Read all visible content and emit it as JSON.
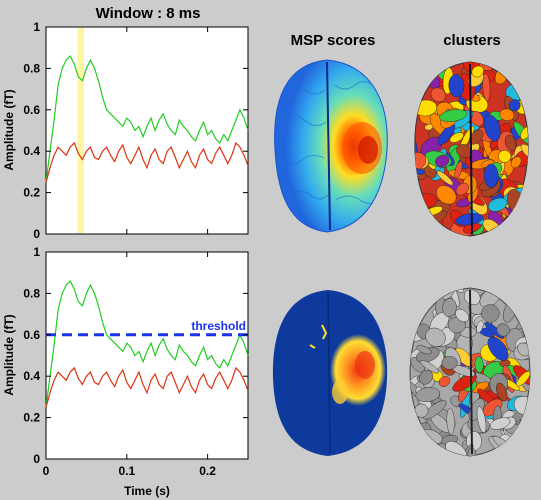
{
  "titles": {
    "top": "Window : 8 ms",
    "msp": "MSP scores",
    "clusters": "clusters"
  },
  "colors": {
    "background": "#cccccc",
    "green_series": "#22cc22",
    "red_series": "#dd3311",
    "window_highlight": "#fff7a0",
    "threshold_line": "#1a33ee"
  },
  "chart_data": [
    {
      "type": "line",
      "title": "Window : 8 ms",
      "xlabel": "",
      "ylabel": "Amplitude (fT)",
      "xlim": [
        0,
        0.25
      ],
      "ylim": [
        0,
        1
      ],
      "x_ticks": [],
      "y_ticks": [
        "0",
        "0.2",
        "0.4",
        "0.6",
        "0.8",
        "1"
      ],
      "highlight_window": [
        0.039,
        0.047
      ],
      "series": [
        {
          "color": "#22cc22",
          "x": [
            0,
            0.005,
            0.01,
            0.015,
            0.02,
            0.025,
            0.03,
            0.035,
            0.04,
            0.045,
            0.05,
            0.055,
            0.06,
            0.065,
            0.07,
            0.075,
            0.08,
            0.085,
            0.09,
            0.095,
            0.1,
            0.105,
            0.11,
            0.115,
            0.12,
            0.125,
            0.13,
            0.135,
            0.14,
            0.145,
            0.15,
            0.155,
            0.16,
            0.165,
            0.17,
            0.175,
            0.18,
            0.185,
            0.19,
            0.195,
            0.2,
            0.205,
            0.21,
            0.215,
            0.22,
            0.225,
            0.23,
            0.235,
            0.24,
            0.245,
            0.25
          ],
          "values": [
            0.25,
            0.4,
            0.55,
            0.72,
            0.8,
            0.84,
            0.86,
            0.82,
            0.76,
            0.74,
            0.8,
            0.84,
            0.8,
            0.74,
            0.66,
            0.6,
            0.58,
            0.56,
            0.54,
            0.52,
            0.56,
            0.54,
            0.5,
            0.52,
            0.47,
            0.52,
            0.56,
            0.5,
            0.55,
            0.58,
            0.53,
            0.5,
            0.48,
            0.55,
            0.52,
            0.5,
            0.47,
            0.45,
            0.5,
            0.54,
            0.48,
            0.5,
            0.46,
            0.44,
            0.48,
            0.45,
            0.5,
            0.55,
            0.6,
            0.56,
            0.5
          ]
        },
        {
          "color": "#dd3311",
          "x": [
            0,
            0.005,
            0.01,
            0.015,
            0.02,
            0.025,
            0.03,
            0.035,
            0.04,
            0.045,
            0.05,
            0.055,
            0.06,
            0.065,
            0.07,
            0.075,
            0.08,
            0.085,
            0.09,
            0.095,
            0.1,
            0.105,
            0.11,
            0.115,
            0.12,
            0.125,
            0.13,
            0.135,
            0.14,
            0.145,
            0.15,
            0.155,
            0.16,
            0.165,
            0.17,
            0.175,
            0.18,
            0.185,
            0.19,
            0.195,
            0.2,
            0.205,
            0.21,
            0.215,
            0.22,
            0.225,
            0.23,
            0.235,
            0.24,
            0.245,
            0.25
          ],
          "values": [
            0.25,
            0.32,
            0.38,
            0.42,
            0.4,
            0.38,
            0.42,
            0.44,
            0.39,
            0.36,
            0.4,
            0.42,
            0.37,
            0.36,
            0.4,
            0.42,
            0.38,
            0.35,
            0.4,
            0.43,
            0.37,
            0.34,
            0.38,
            0.42,
            0.36,
            0.32,
            0.38,
            0.41,
            0.36,
            0.34,
            0.4,
            0.42,
            0.37,
            0.32,
            0.36,
            0.4,
            0.35,
            0.32,
            0.38,
            0.41,
            0.36,
            0.34,
            0.39,
            0.42,
            0.38,
            0.34,
            0.38,
            0.44,
            0.42,
            0.38,
            0.33
          ]
        }
      ]
    },
    {
      "type": "line",
      "xlabel": "Time (s)",
      "ylabel": "Amplitude (fT)",
      "xlim": [
        0,
        0.25
      ],
      "ylim": [
        0,
        1
      ],
      "x_ticks": [
        "0",
        "0.1",
        "0.2"
      ],
      "y_ticks": [
        "0",
        "0.2",
        "0.4",
        "0.6",
        "0.8",
        "1"
      ],
      "threshold": {
        "label": "threshold",
        "value": 0.6
      },
      "series": [
        {
          "color": "#22cc22",
          "x": [
            0,
            0.005,
            0.01,
            0.015,
            0.02,
            0.025,
            0.03,
            0.035,
            0.04,
            0.045,
            0.05,
            0.055,
            0.06,
            0.065,
            0.07,
            0.075,
            0.08,
            0.085,
            0.09,
            0.095,
            0.1,
            0.105,
            0.11,
            0.115,
            0.12,
            0.125,
            0.13,
            0.135,
            0.14,
            0.145,
            0.15,
            0.155,
            0.16,
            0.165,
            0.17,
            0.175,
            0.18,
            0.185,
            0.19,
            0.195,
            0.2,
            0.205,
            0.21,
            0.215,
            0.22,
            0.225,
            0.23,
            0.235,
            0.24,
            0.245,
            0.25
          ],
          "values": [
            0.25,
            0.4,
            0.55,
            0.72,
            0.8,
            0.84,
            0.86,
            0.82,
            0.76,
            0.74,
            0.8,
            0.84,
            0.8,
            0.74,
            0.66,
            0.6,
            0.58,
            0.56,
            0.54,
            0.52,
            0.56,
            0.54,
            0.5,
            0.52,
            0.47,
            0.52,
            0.56,
            0.5,
            0.55,
            0.58,
            0.53,
            0.5,
            0.48,
            0.55,
            0.52,
            0.5,
            0.47,
            0.45,
            0.5,
            0.54,
            0.48,
            0.5,
            0.46,
            0.44,
            0.48,
            0.45,
            0.5,
            0.55,
            0.6,
            0.56,
            0.5
          ]
        },
        {
          "color": "#dd3311",
          "x": [
            0,
            0.005,
            0.01,
            0.015,
            0.02,
            0.025,
            0.03,
            0.035,
            0.04,
            0.045,
            0.05,
            0.055,
            0.06,
            0.065,
            0.07,
            0.075,
            0.08,
            0.085,
            0.09,
            0.095,
            0.1,
            0.105,
            0.11,
            0.115,
            0.12,
            0.125,
            0.13,
            0.135,
            0.14,
            0.145,
            0.15,
            0.155,
            0.16,
            0.165,
            0.17,
            0.175,
            0.18,
            0.185,
            0.19,
            0.195,
            0.2,
            0.205,
            0.21,
            0.215,
            0.22,
            0.225,
            0.23,
            0.235,
            0.24,
            0.245,
            0.25
          ],
          "values": [
            0.25,
            0.32,
            0.38,
            0.42,
            0.4,
            0.38,
            0.42,
            0.44,
            0.39,
            0.36,
            0.4,
            0.42,
            0.37,
            0.36,
            0.4,
            0.42,
            0.38,
            0.35,
            0.4,
            0.43,
            0.37,
            0.34,
            0.38,
            0.42,
            0.36,
            0.32,
            0.38,
            0.41,
            0.36,
            0.34,
            0.4,
            0.42,
            0.37,
            0.32,
            0.36,
            0.4,
            0.35,
            0.32,
            0.38,
            0.41,
            0.36,
            0.34,
            0.39,
            0.42,
            0.38,
            0.34,
            0.38,
            0.44,
            0.42,
            0.38,
            0.33
          ]
        }
      ]
    }
  ],
  "brains": [
    {
      "panel": "msp-top",
      "style": "jet-smooth"
    },
    {
      "panel": "clusters-top",
      "style": "patchy-color"
    },
    {
      "panel": "msp-bottom",
      "style": "thresholded"
    },
    {
      "panel": "clusters-bottom",
      "style": "patchy-gray"
    }
  ]
}
